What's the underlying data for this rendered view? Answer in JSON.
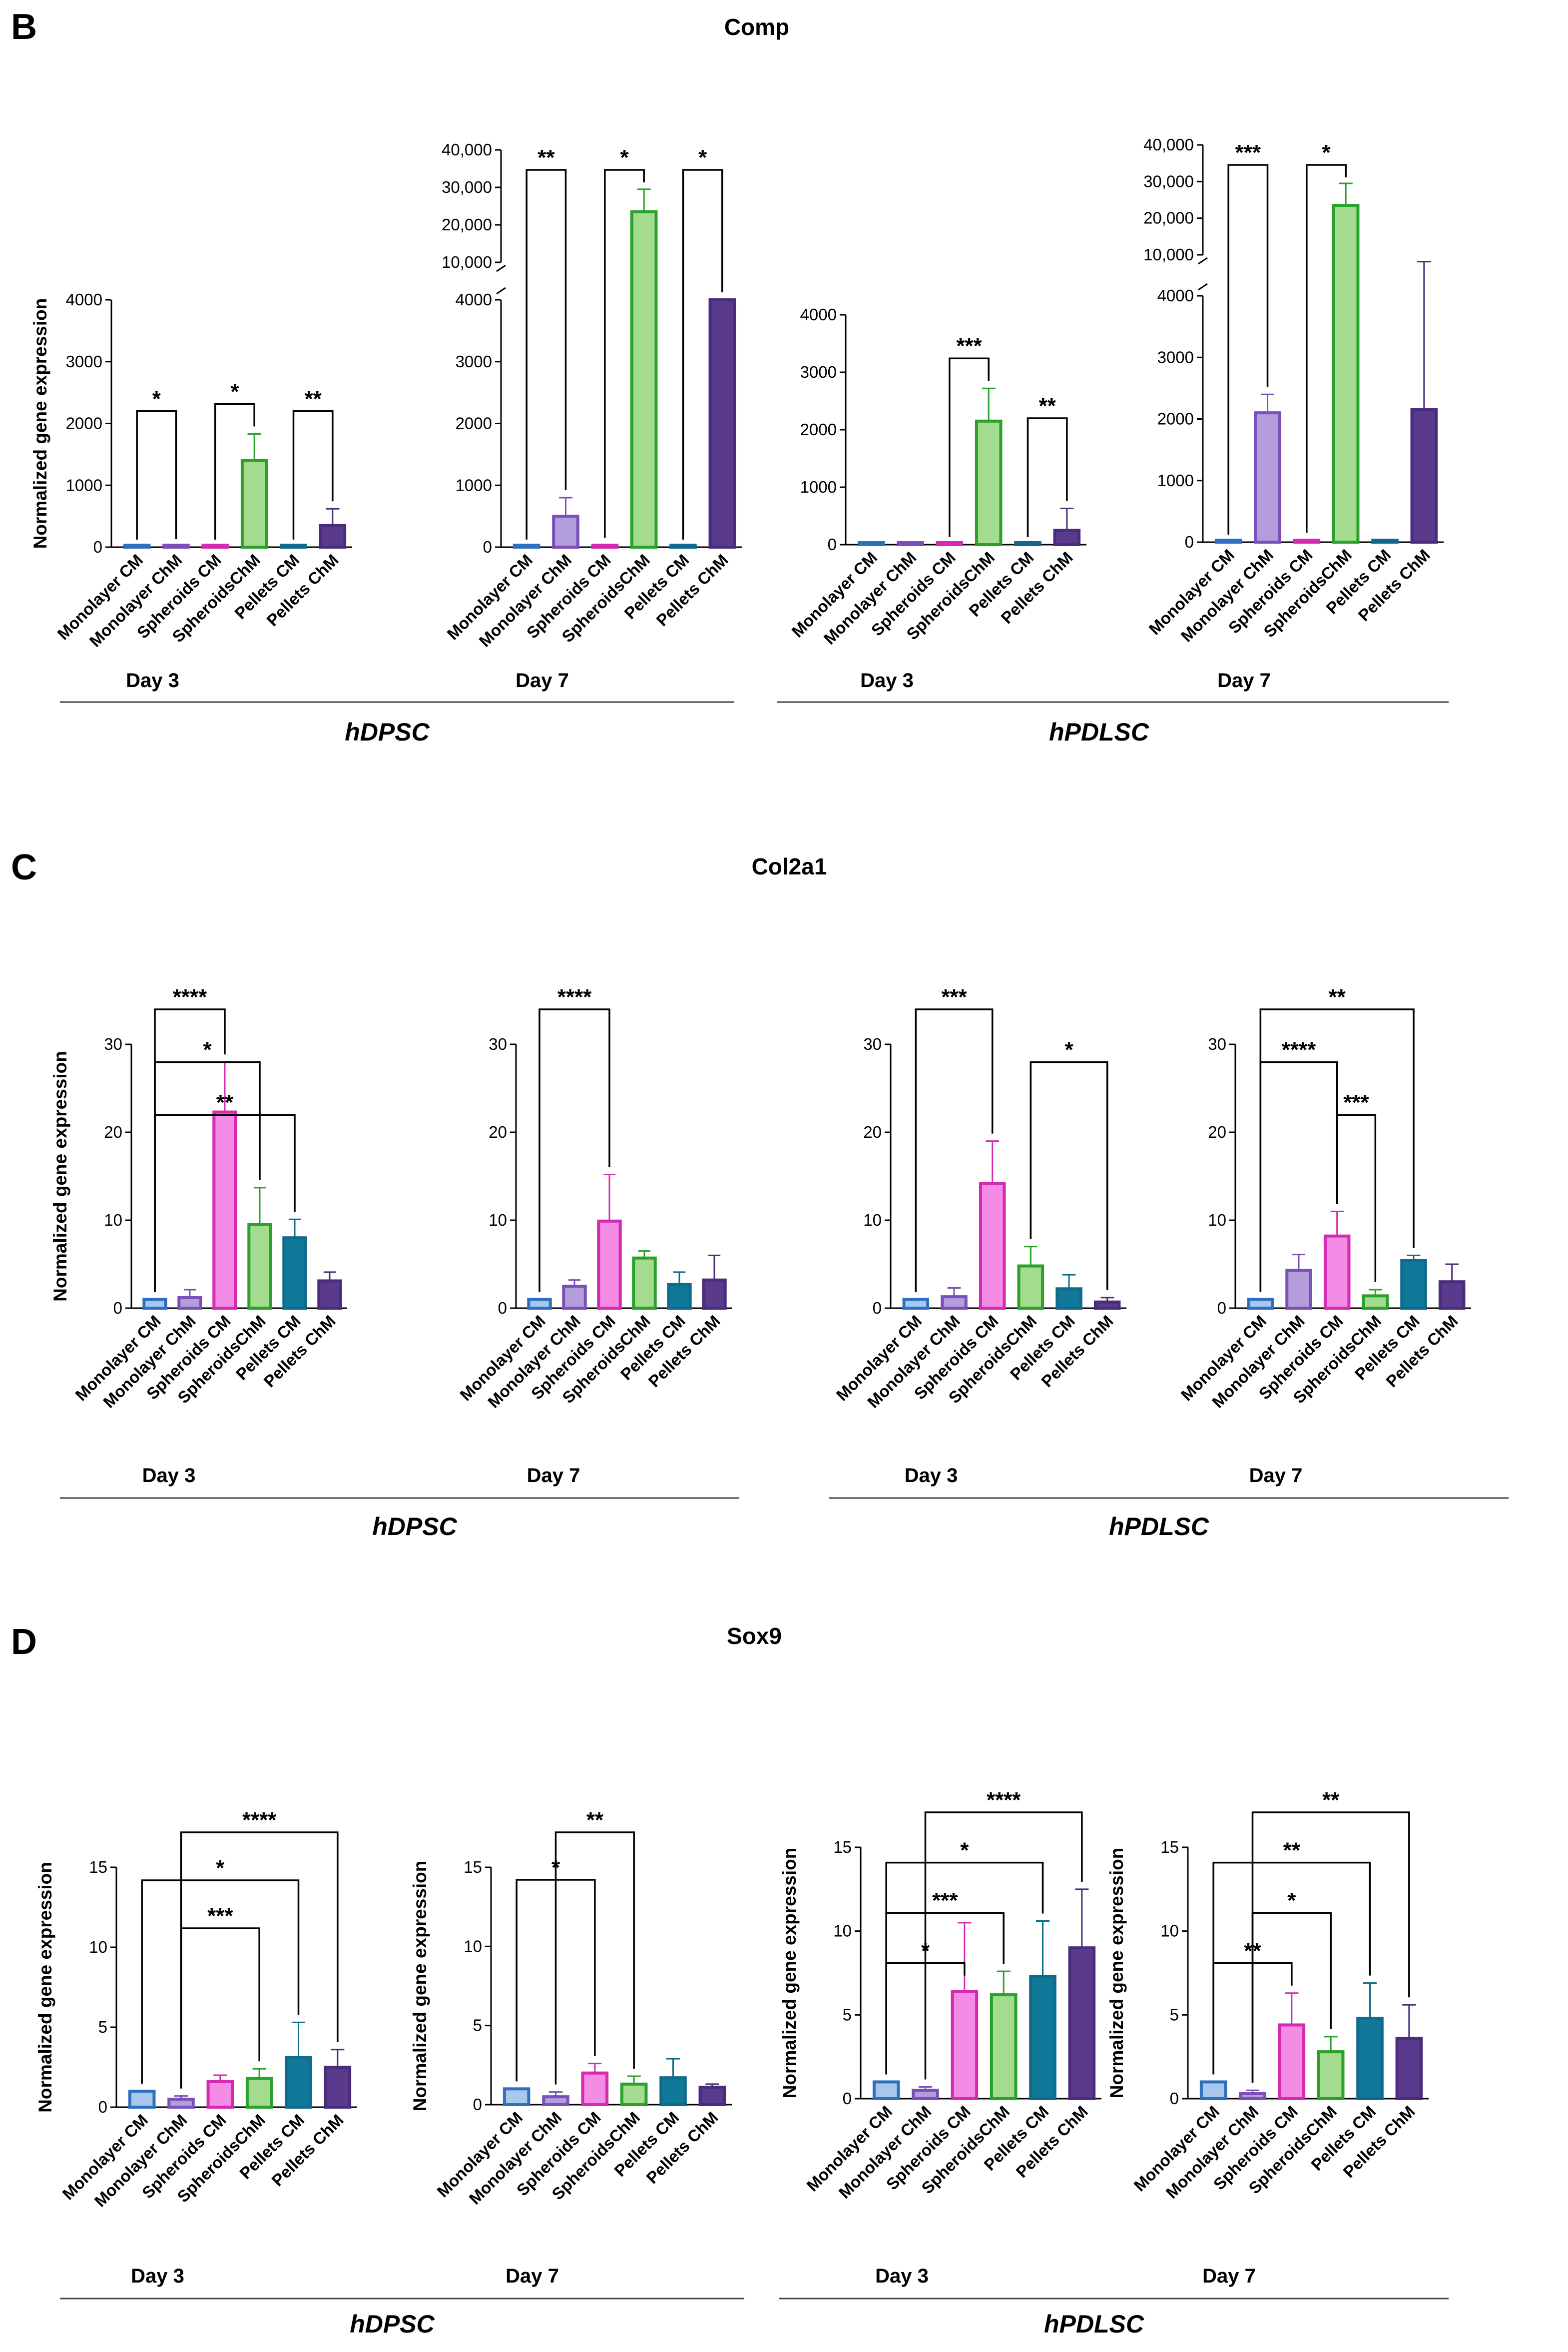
{
  "colors": {
    "Monolayer CM": "#2e6fbf",
    "Monolayer ChM": "#7b4fb8",
    "Spheroids CM": "#d42ab0",
    "SpheroidsChM": "#2aa12a",
    "Pellets CM": "#106a8c",
    "Pellets ChM": "#4a2d7a"
  },
  "fills": {
    "Monolayer CM": "#a9c6ec",
    "Monolayer ChM": "#b39ddb",
    "Spheroids CM": "#f48ce6",
    "SpheroidsChM": "#a3dc8f",
    "Pellets CM": "#10799a",
    "Pellets ChM": "#5a3a8c"
  },
  "panels": [
    {
      "letter": "B",
      "gene": "Comp",
      "groups": [
        {
          "name": "hDPSC",
          "days": [
            "Day 3",
            "Day 7"
          ]
        },
        {
          "name": "hPDLSC",
          "days": [
            "Day 3",
            "Day 7"
          ]
        }
      ]
    },
    {
      "letter": "C",
      "gene": "Col2a1",
      "groups": [
        {
          "name": "hDPSC",
          "days": [
            "Day 3",
            "Day 7"
          ]
        },
        {
          "name": "hPDLSC",
          "days": [
            "Day 3",
            "Day 7"
          ]
        }
      ]
    },
    {
      "letter": "D",
      "gene": "Sox9",
      "groups": [
        {
          "name": "hDPSC",
          "days": [
            "Day 3",
            "Day 7"
          ]
        },
        {
          "name": "hPDLSC",
          "days": [
            "Day 3",
            "Day 7"
          ]
        }
      ]
    }
  ],
  "chart_data": [
    {
      "type": "bar",
      "gene": "Comp",
      "cell": "hDPSC",
      "day": "Day 3",
      "ylabel": "Normalized gene expression",
      "categories": [
        "Monolayer CM",
        "Monolayer ChM",
        "Spheroids CM",
        "SpheroidsChM",
        "Pellets CM",
        "Pellets ChM"
      ],
      "values": [
        1,
        5,
        1,
        1400,
        1,
        350
      ],
      "errors": [
        0,
        3,
        0,
        430,
        0,
        270
      ],
      "ylim": [
        0,
        4000
      ],
      "yticks": [
        0,
        1000,
        2000,
        3000,
        4000
      ],
      "sig": [
        {
          "from": 0,
          "to": 1,
          "label": "*"
        },
        {
          "from": 2,
          "to": 3,
          "label": "*"
        },
        {
          "from": 4,
          "to": 5,
          "label": "**"
        }
      ]
    },
    {
      "type": "bar",
      "gene": "Comp",
      "cell": "hDPSC",
      "day": "Day 7",
      "ylabel": "",
      "categories": [
        "Monolayer CM",
        "Monolayer ChM",
        "Spheroids CM",
        "SpheroidsChM",
        "Pellets CM",
        "Pellets ChM"
      ],
      "values": [
        1,
        500,
        20,
        23500,
        1,
        4000
      ],
      "errors": [
        0,
        300,
        10,
        6000,
        0,
        0
      ],
      "ylim": [
        0,
        40000
      ],
      "yticks": [
        0,
        1000,
        2000,
        3000,
        4000
      ],
      "ybreak": {
        "at": 4000,
        "upper_ticks": [
          10000,
          20000,
          30000,
          40000
        ],
        "upper_labels": [
          "10,000",
          "20,000",
          "30,000",
          "40,000"
        ]
      },
      "sig": [
        {
          "from": 0,
          "to": 1,
          "label": "**"
        },
        {
          "from": 2,
          "to": 3,
          "label": "*"
        },
        {
          "from": 4,
          "to": 5,
          "label": "*"
        }
      ]
    },
    {
      "type": "bar",
      "gene": "Comp",
      "cell": "hPDLSC",
      "day": "Day 3",
      "ylabel": "",
      "categories": [
        "Monolayer CM",
        "Monolayer ChM",
        "Spheroids CM",
        "SpheroidsChM",
        "Pellets CM",
        "Pellets ChM"
      ],
      "values": [
        1,
        5,
        1,
        2150,
        1,
        250
      ],
      "errors": [
        0,
        5,
        0,
        570,
        0,
        380
      ],
      "ylim": [
        0,
        4000
      ],
      "yticks": [
        0,
        1000,
        2000,
        3000,
        4000
      ],
      "sig": [
        {
          "from": 2,
          "to": 3,
          "label": "***"
        },
        {
          "from": 4,
          "to": 5,
          "label": "**"
        }
      ]
    },
    {
      "type": "bar",
      "gene": "Comp",
      "cell": "hPDLSC",
      "day": "Day 7",
      "ylabel": "",
      "categories": [
        "Monolayer CM",
        "Monolayer ChM",
        "Spheroids CM",
        "SpheroidsChM",
        "Pellets CM",
        "Pellets ChM"
      ],
      "values": [
        1,
        2100,
        20,
        23500,
        1,
        2150
      ],
      "errors": [
        0,
        300,
        10,
        6000,
        0,
        6000
      ],
      "ylim": [
        0,
        40000
      ],
      "yticks": [
        0,
        1000,
        2000,
        3000,
        4000
      ],
      "ybreak": {
        "at": 4000,
        "upper_ticks": [
          10000,
          20000,
          30000,
          40000
        ],
        "upper_labels": [
          "10,000",
          "20,000",
          "30,000",
          "40,000"
        ]
      },
      "sig": [
        {
          "from": 0,
          "to": 1,
          "label": "***"
        },
        {
          "from": 2,
          "to": 3,
          "label": "*"
        }
      ]
    },
    {
      "type": "bar",
      "gene": "Col2a1",
      "cell": "hDPSC",
      "day": "Day 3",
      "ylabel": "Normalized gene expression",
      "categories": [
        "Monolayer CM",
        "Monolayer ChM",
        "Spheroids CM",
        "SpheroidsChM",
        "Pellets CM",
        "Pellets ChM"
      ],
      "values": [
        1,
        1.2,
        22.3,
        9.5,
        8.0,
        3.1
      ],
      "errors": [
        0,
        0.9,
        5.7,
        4.2,
        2.1,
        1.0
      ],
      "ylim": [
        0,
        30
      ],
      "yticks": [
        0,
        10,
        20,
        30
      ],
      "sig": [
        {
          "from": 0,
          "to": 2,
          "label": "****"
        },
        {
          "from": 0,
          "to": 3,
          "label": "*"
        },
        {
          "from": 0,
          "to": 4,
          "label": "**"
        }
      ]
    },
    {
      "type": "bar",
      "gene": "Col2a1",
      "cell": "hDPSC",
      "day": "Day 7",
      "ylabel": "",
      "categories": [
        "Monolayer CM",
        "Monolayer ChM",
        "Spheroids CM",
        "SpheroidsChM",
        "Pellets CM",
        "Pellets ChM"
      ],
      "values": [
        1,
        2.5,
        9.9,
        5.7,
        2.7,
        3.2
      ],
      "errors": [
        0,
        0.7,
        5.3,
        0.8,
        1.4,
        2.8
      ],
      "ylim": [
        0,
        30
      ],
      "yticks": [
        0,
        10,
        20,
        30
      ],
      "sig": [
        {
          "from": 0,
          "to": 2,
          "label": "****"
        }
      ]
    },
    {
      "type": "bar",
      "gene": "Col2a1",
      "cell": "hPDLSC",
      "day": "Day 3",
      "ylabel": "",
      "categories": [
        "Monolayer CM",
        "Monolayer ChM",
        "Spheroids CM",
        "SpheroidsChM",
        "Pellets CM",
        "Pellets ChM"
      ],
      "values": [
        1,
        1.3,
        14.2,
        4.8,
        2.2,
        0.7
      ],
      "errors": [
        0,
        1.0,
        4.8,
        2.2,
        1.6,
        0.5
      ],
      "ylim": [
        0,
        30
      ],
      "yticks": [
        0,
        10,
        20,
        30
      ],
      "sig": [
        {
          "from": 0,
          "to": 2,
          "label": "***"
        },
        {
          "from": 3,
          "to": 5,
          "label": "*"
        }
      ]
    },
    {
      "type": "bar",
      "gene": "Col2a1",
      "cell": "hPDLSC",
      "day": "Day 7",
      "ylabel": "",
      "categories": [
        "Monolayer CM",
        "Monolayer ChM",
        "Spheroids CM",
        "SpheroidsChM",
        "Pellets CM",
        "Pellets ChM"
      ],
      "values": [
        1,
        4.3,
        8.2,
        1.4,
        5.4,
        3.0
      ],
      "errors": [
        0,
        1.8,
        2.8,
        0.7,
        0.6,
        2.0
      ],
      "ylim": [
        0,
        30
      ],
      "yticks": [
        0,
        10,
        20,
        30
      ],
      "sig": [
        {
          "from": 0,
          "to": 4,
          "label": "**"
        },
        {
          "from": 0,
          "to": 2,
          "label": "****"
        },
        {
          "from": 2,
          "to": 3,
          "label": "***"
        }
      ]
    },
    {
      "type": "bar",
      "gene": "Sox9",
      "cell": "hDPSC",
      "day": "Day 3",
      "ylabel": "Normalized gene expression",
      "categories": [
        "Monolayer CM",
        "Monolayer ChM",
        "Spheroids CM",
        "SpheroidsChM",
        "Pellets CM",
        "Pellets ChM"
      ],
      "values": [
        1,
        0.5,
        1.6,
        1.8,
        3.1,
        2.5
      ],
      "errors": [
        0,
        0.2,
        0.4,
        0.6,
        2.2,
        1.1
      ],
      "ylim": [
        0,
        15
      ],
      "yticks": [
        0,
        5,
        10,
        15
      ],
      "sig": [
        {
          "from": 1,
          "to": 5,
          "label": "****"
        },
        {
          "from": 0,
          "to": 4,
          "label": "*"
        },
        {
          "from": 1,
          "to": 3,
          "label": "***"
        }
      ]
    },
    {
      "type": "bar",
      "gene": "Sox9",
      "cell": "hDPSC",
      "day": "Day 7",
      "ylabel": "Normalized gene expression",
      "categories": [
        "Monolayer CM",
        "Monolayer ChM",
        "Spheroids CM",
        "SpheroidsChM",
        "Pellets CM",
        "Pellets ChM"
      ],
      "values": [
        1,
        0.5,
        2.0,
        1.3,
        1.7,
        1.1
      ],
      "errors": [
        0,
        0.3,
        0.6,
        0.5,
        1.2,
        0.2
      ],
      "ylim": [
        0,
        15
      ],
      "yticks": [
        0,
        5,
        10,
        15
      ],
      "sig": [
        {
          "from": 1,
          "to": 3,
          "label": "**"
        },
        {
          "from": 0,
          "to": 2,
          "label": "*"
        }
      ]
    },
    {
      "type": "bar",
      "gene": "Sox9",
      "cell": "hPDLSC",
      "day": "Day 3",
      "ylabel": "Normalized gene expression",
      "categories": [
        "Monolayer CM",
        "Monolayer ChM",
        "Spheroids CM",
        "SpheroidsChM",
        "Pellets CM",
        "Pellets ChM"
      ],
      "values": [
        1,
        0.5,
        6.4,
        6.2,
        7.3,
        9.0
      ],
      "errors": [
        0,
        0.2,
        4.1,
        1.4,
        3.3,
        3.5
      ],
      "ylim": [
        0,
        15
      ],
      "yticks": [
        0,
        5,
        10,
        15
      ],
      "sig": [
        {
          "from": 1,
          "to": 5,
          "label": "****"
        },
        {
          "from": 0,
          "to": 4,
          "label": "*"
        },
        {
          "from": 0,
          "to": 3,
          "label": "***"
        },
        {
          "from": 0,
          "to": 2,
          "label": "*"
        }
      ]
    },
    {
      "type": "bar",
      "gene": "Sox9",
      "cell": "hPDLSC",
      "day": "Day 7",
      "ylabel": "Normalized gene expression",
      "categories": [
        "Monolayer CM",
        "Monolayer ChM",
        "Spheroids CM",
        "SpheroidsChM",
        "Pellets CM",
        "Pellets ChM"
      ],
      "values": [
        1,
        0.3,
        4.4,
        2.8,
        4.8,
        3.6
      ],
      "errors": [
        0,
        0.2,
        1.9,
        0.9,
        2.1,
        2.0
      ],
      "ylim": [
        0,
        15
      ],
      "yticks": [
        0,
        5,
        10,
        15
      ],
      "sig": [
        {
          "from": 1,
          "to": 5,
          "label": "**"
        },
        {
          "from": 0,
          "to": 4,
          "label": "**"
        },
        {
          "from": 1,
          "to": 3,
          "label": "*"
        },
        {
          "from": 0,
          "to": 2,
          "label": "**"
        }
      ]
    }
  ]
}
